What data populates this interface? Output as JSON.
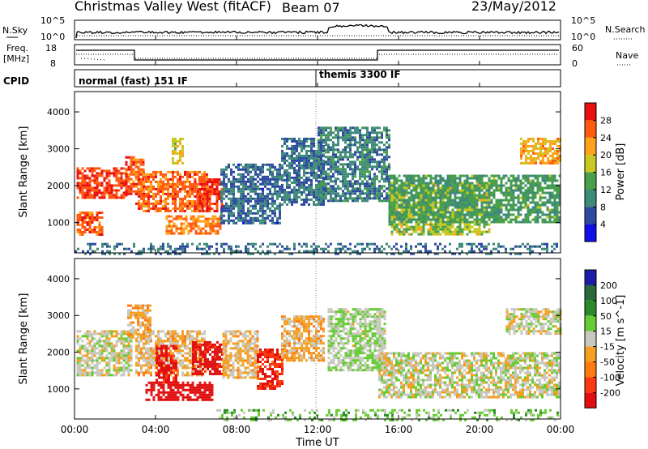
{
  "header": {
    "station": "Christmas Valley West (fitACF)",
    "beam": "Beam 07",
    "date": "23/May/2012"
  },
  "top_panels": {
    "nsky": {
      "label": "N.Sky",
      "ticks": [
        "10^5",
        "10^0"
      ],
      "right_label": "N.Search",
      "right_ticks": [
        "10^5",
        "10^0"
      ]
    },
    "freq": {
      "label_line1": "Freq.",
      "label_line2": "[MHz]",
      "ticks": [
        "18",
        "8"
      ],
      "right_label": "Nave",
      "right_ticks": [
        "60",
        "0"
      ]
    },
    "cpid": {
      "label": "CPID",
      "segments": [
        "normal (fast) 151 IF",
        "themis 3300 IF"
      ]
    }
  },
  "x_axis": {
    "label": "Time UT",
    "ticks": [
      "00:00",
      "04:00",
      "08:00",
      "12:00",
      "16:00",
      "20:00",
      "00:00"
    ]
  },
  "power_panel": {
    "ylabel": "Slant Range [km]",
    "yticks": [
      "1000",
      "2000",
      "3000",
      "4000"
    ],
    "colorbar_label": "Power [dB]",
    "colorbar_ticks": [
      "4",
      "8",
      "12",
      "16",
      "20",
      "24",
      "28"
    ],
    "colors": [
      "#1010e8",
      "#2d4aa0",
      "#3e8a7a",
      "#4aa04a",
      "#c8c820",
      "#ffa21a",
      "#ff5a10",
      "#e81010"
    ]
  },
  "velocity_panel": {
    "ylabel": "Slant Range [km]",
    "yticks": [
      "1000",
      "2000",
      "3000",
      "4000"
    ],
    "colorbar_label": "Velocity [m s^-1]",
    "colorbar_ticks": [
      "200",
      "100",
      "50",
      "15",
      "-15",
      "-50",
      "-100",
      "-200"
    ],
    "colors": [
      "#1c1ca8",
      "#2a6a3a",
      "#2a8a2a",
      "#66cc33",
      "#c8c8c0",
      "#f5a020",
      "#ff7a10",
      "#ff3a10",
      "#e01010"
    ]
  },
  "chart_data": [
    {
      "type": "heatmap",
      "title": "Power",
      "xlabel": "Time UT",
      "ylabel": "Slant Range [km]",
      "x_range_hours": [
        0,
        24
      ],
      "y_range_km": [
        180,
        4550
      ],
      "colorbar": {
        "label": "Power [dB]",
        "range": [
          0,
          30
        ]
      },
      "regions": [
        {
          "t": [
            0.1,
            2.6
          ],
          "r": [
            1700,
            2500
          ],
          "value": 26
        },
        {
          "t": [
            0.1,
            1.4
          ],
          "r": [
            700,
            1300
          ],
          "value": 24
        },
        {
          "t": [
            2.5,
            3.4
          ],
          "r": [
            1800,
            2800
          ],
          "value": 25
        },
        {
          "t": [
            3.0,
            6.6
          ],
          "r": [
            1300,
            2400
          ],
          "value": 24
        },
        {
          "t": [
            4.8,
            5.4
          ],
          "r": [
            2600,
            3300
          ],
          "value": 18
        },
        {
          "t": [
            5.9,
            7.3
          ],
          "r": [
            1300,
            2200
          ],
          "value": 26
        },
        {
          "t": [
            4.5,
            7.2
          ],
          "r": [
            700,
            1200
          ],
          "value": 22
        },
        {
          "t": [
            7.2,
            10.2
          ],
          "r": [
            1000,
            2600
          ],
          "value": 7
        },
        {
          "t": [
            10.2,
            12.3
          ],
          "r": [
            1500,
            3300
          ],
          "value": 8
        },
        {
          "t": [
            12.0,
            15.5
          ],
          "r": [
            1600,
            3600
          ],
          "value": 9
        },
        {
          "t": [
            15.5,
            20.5
          ],
          "r": [
            700,
            2100
          ],
          "value": 16
        },
        {
          "t": [
            15.5,
            24.0
          ],
          "r": [
            1000,
            2300
          ],
          "value": 12
        },
        {
          "t": [
            22.0,
            24.0
          ],
          "r": [
            2600,
            3300
          ],
          "value": 20
        },
        {
          "t": [
            0,
            24
          ],
          "r": [
            180,
            450
          ],
          "value": 8
        }
      ]
    },
    {
      "type": "heatmap",
      "title": "Velocity",
      "xlabel": "Time UT",
      "ylabel": "Slant Range [km]",
      "x_range_hours": [
        0,
        24
      ],
      "y_range_km": [
        180,
        4550
      ],
      "colorbar": {
        "label": "Velocity [m s^-1]",
        "range": [
          -200,
          200
        ]
      },
      "regions": [
        {
          "t": [
            0.1,
            2.8
          ],
          "r": [
            1400,
            2600
          ],
          "value": 0
        },
        {
          "t": [
            2.6,
            3.8
          ],
          "r": [
            2400,
            3300
          ],
          "value": -50
        },
        {
          "t": [
            3.0,
            6.4
          ],
          "r": [
            1400,
            2600
          ],
          "value": -30
        },
        {
          "t": [
            4.0,
            5.0
          ],
          "r": [
            1200,
            2200
          ],
          "value": -180
        },
        {
          "t": [
            3.5,
            6.8
          ],
          "r": [
            700,
            1200
          ],
          "value": -200
        },
        {
          "t": [
            5.8,
            7.3
          ],
          "r": [
            1400,
            2300
          ],
          "value": -190
        },
        {
          "t": [
            7.3,
            9.0
          ],
          "r": [
            1300,
            2600
          ],
          "value": -30
        },
        {
          "t": [
            9.0,
            10.3
          ],
          "r": [
            1000,
            2100
          ],
          "value": -150
        },
        {
          "t": [
            10.2,
            12.3
          ],
          "r": [
            1800,
            3000
          ],
          "value": -40
        },
        {
          "t": [
            12.5,
            15.3
          ],
          "r": [
            1500,
            3200
          ],
          "value": 20
        },
        {
          "t": [
            15.0,
            24.0
          ],
          "r": [
            800,
            2000
          ],
          "value": 0
        },
        {
          "t": [
            21.3,
            24.0
          ],
          "r": [
            2500,
            3200
          ],
          "value": 0
        },
        {
          "t": [
            7.0,
            24.0
          ],
          "r": [
            180,
            450
          ],
          "value": 40
        }
      ]
    }
  ]
}
